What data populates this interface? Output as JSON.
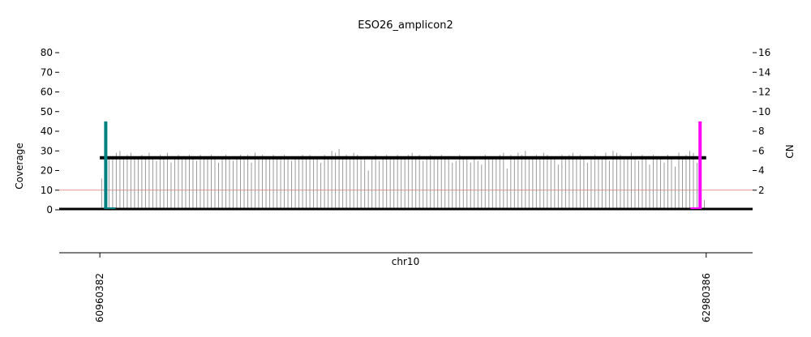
{
  "chart_data": {
    "type": "bar",
    "title": "ESO26_amplicon2",
    "xlabel": "chr10",
    "ylabel": "Coverage",
    "y2label": "CN",
    "ylim": [
      0,
      85
    ],
    "y2lim": [
      0,
      17
    ],
    "yticks": [
      0,
      10,
      20,
      30,
      40,
      50,
      60,
      70,
      80
    ],
    "y2ticks": [
      2,
      4,
      6,
      8,
      10,
      12,
      14,
      16
    ],
    "xlim": [
      60825000,
      63135000
    ],
    "xticks": [
      "60960382",
      "62980386"
    ],
    "xtick_values": [
      60960382,
      62980386
    ],
    "region": [
      60960382,
      62980386
    ],
    "cn_level": 5.3,
    "cn_baseline": 0,
    "reference_line": 10,
    "coverage_typical": 27,
    "breakpoints": [
      {
        "position": 60980000,
        "coverage": 45,
        "color": "#008080",
        "foot_direction": "right"
      },
      {
        "position": 62960000,
        "coverage": 45,
        "color": "#ff00ff",
        "foot_direction": "left"
      }
    ],
    "coverage": [
      16,
      28,
      27,
      26,
      29,
      30,
      27,
      28,
      29,
      26,
      27,
      28,
      27,
      29,
      26,
      25,
      28,
      27,
      29,
      24,
      27,
      28,
      26,
      27,
      28,
      27,
      25,
      28,
      26,
      27,
      28,
      26,
      24,
      27,
      28,
      27,
      25,
      26,
      28,
      27,
      28,
      24,
      29,
      27,
      28,
      26,
      27,
      28,
      27,
      26,
      28,
      27,
      25,
      26,
      27,
      28,
      27,
      28,
      26,
      27,
      24,
      28,
      27,
      30,
      29,
      31,
      26,
      28,
      27,
      29,
      28,
      27,
      26,
      20,
      27,
      28,
      25,
      27,
      28,
      26,
      27,
      28,
      27,
      26,
      28,
      29,
      27,
      28,
      25,
      27,
      28,
      26,
      27,
      28,
      27,
      26,
      24,
      25,
      28,
      27,
      26,
      24,
      27,
      25,
      23,
      28,
      27,
      26,
      27,
      28,
      29,
      21,
      28,
      27,
      29,
      28,
      30,
      27,
      26,
      28,
      27,
      29,
      28,
      26,
      27,
      23,
      28,
      27,
      28,
      29,
      27,
      28,
      26,
      24,
      27,
      28,
      26,
      27,
      29,
      25,
      30,
      29,
      28,
      27,
      26,
      29,
      27,
      25,
      28,
      27,
      23,
      28,
      26,
      27,
      24,
      28,
      27,
      22,
      29,
      27,
      28,
      30,
      29,
      24,
      25,
      5
    ],
    "colors": {
      "coverage_bars": "#999999",
      "cn_segment": "#000000",
      "reference_line": "#e07070",
      "left_breakpoint": "#008080",
      "right_breakpoint": "#ff00ff"
    },
    "grid": false,
    "legend": "none"
  }
}
